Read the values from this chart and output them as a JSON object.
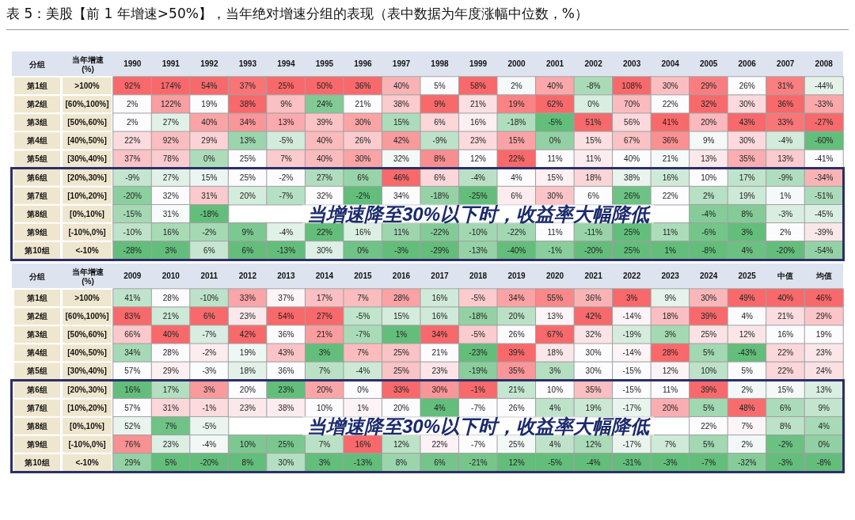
{
  "chart_data": [
    {
      "type": "heatmap",
      "title": "表 5：美股【前 1 年增速>50%】，当年绝对增速分组的表现（表中数据为年度涨幅中位数，%）",
      "ylabel": "当年增速(%)",
      "y2label": "分组",
      "annotations": [
        "当增速降至30%以下时，收益率大幅降低"
      ],
      "categories": [
        "1990",
        "1991",
        "1992",
        "1993",
        "1994",
        "1995",
        "1996",
        "1997",
        "1998",
        "1999",
        "2000",
        "2001",
        "2002",
        "2003",
        "2004",
        "2005",
        "2006",
        "2007",
        "2008"
      ],
      "y_categories": [
        ">100%",
        "[60%,100%]",
        "[50%,60%]",
        "[40%,50%]",
        "[30%,40%]",
        "[20%,30%]",
        "[10%,20%]",
        "[0%,10%]",
        "[-10%,0%]",
        "<-10%"
      ],
      "y2_categories": [
        "第1组",
        "第2组",
        "第3组",
        "第4组",
        "第5组",
        "第6组",
        "第7组",
        "第8组",
        "第9组",
        "第10组"
      ],
      "cells": [
        [
          92,
          174,
          54,
          37,
          25,
          50,
          36,
          40,
          5,
          58,
          2,
          40,
          -8,
          108,
          30,
          29,
          26,
          31,
          -44
        ],
        [
          2,
          122,
          19,
          38,
          9,
          24,
          21,
          38,
          9,
          21,
          19,
          62,
          0,
          70,
          22,
          32,
          30,
          36,
          -33
        ],
        [
          2,
          27,
          40,
          34,
          13,
          39,
          30,
          15,
          6,
          16,
          -18,
          -5,
          51,
          56,
          41,
          20,
          43,
          33,
          -27
        ],
        [
          22,
          92,
          29,
          13,
          -5,
          40,
          26,
          42,
          -9,
          23,
          15,
          0,
          15,
          67,
          36,
          9,
          30,
          -4,
          -60
        ],
        [
          37,
          78,
          0,
          25,
          7,
          40,
          30,
          32,
          8,
          12,
          22,
          11,
          11,
          40,
          21,
          13,
          35,
          13,
          -41
        ],
        [
          -9,
          27,
          15,
          25,
          -2,
          27,
          6,
          46,
          6,
          -4,
          4,
          15,
          18,
          38,
          16,
          10,
          17,
          -9,
          -34
        ],
        [
          -20,
          32,
          31,
          20,
          -7,
          32,
          -2,
          34,
          -18,
          -25,
          6,
          30,
          6,
          26,
          22,
          2,
          19,
          1,
          -51
        ],
        [
          -15,
          31,
          -18,
          null,
          null,
          null,
          null,
          null,
          null,
          null,
          null,
          null,
          null,
          null,
          null,
          -4,
          8,
          -3,
          -45
        ],
        [
          -10,
          16,
          -2,
          9,
          -4,
          22,
          16,
          11,
          -22,
          -10,
          -22,
          11,
          -11,
          25,
          11,
          -6,
          3,
          2,
          -39
        ],
        [
          -28,
          3,
          6,
          6,
          -13,
          30,
          0,
          -3,
          -29,
          -13,
          -40,
          -1,
          -20,
          25,
          1,
          -8,
          4,
          -20,
          -54
        ]
      ],
      "cell_labels": [
        [
          "92%",
          "174%",
          "54%",
          "37%",
          "25%",
          "50%",
          "36%",
          "40%",
          "5%",
          "58%",
          "2%",
          "40%",
          "-8%",
          "108%",
          "30%",
          "29%",
          "26%",
          "31%",
          "-44%"
        ],
        [
          "2%",
          "122%",
          "19%",
          "38%",
          "9%",
          "24%",
          "21%",
          "38%",
          "9%",
          "21%",
          "19%",
          "62%",
          "0%",
          "70%",
          "22%",
          "32%",
          "30%",
          "36%",
          "-33%"
        ],
        [
          "2%",
          "27%",
          "40%",
          "34%",
          "13%",
          "39%",
          "30%",
          "15%",
          "6%",
          "16%",
          "-18%",
          "-5%",
          "51%",
          "56%",
          "41%",
          "20%",
          "43%",
          "33%",
          "-27%"
        ],
        [
          "22%",
          "92%",
          "29%",
          "13%",
          "-5%",
          "40%",
          "26%",
          "42%",
          "-9%",
          "23%",
          "15%",
          "0%",
          "15%",
          "67%",
          "36%",
          "9%",
          "30%",
          "-4%",
          "-60%"
        ],
        [
          "37%",
          "78%",
          "0%",
          "25%",
          "7%",
          "40%",
          "30%",
          "32%",
          "8%",
          "12%",
          "22%",
          "11%",
          "11%",
          "40%",
          "21%",
          "13%",
          "35%",
          "13%",
          "-41%"
        ],
        [
          "-9%",
          "27%",
          "15%",
          "25%",
          "-2%",
          "27%",
          "6%",
          "46%",
          "6%",
          "-4%",
          "4%",
          "15%",
          "18%",
          "38%",
          "16%",
          "10%",
          "17%",
          "-9%",
          "-34%"
        ],
        [
          "-20%",
          "32%",
          "31%",
          "20%",
          "-7%",
          "32%",
          "-2%",
          "34%",
          "-18%",
          "-25%",
          "6%",
          "30%",
          "6%",
          "26%",
          "22%",
          "2%",
          "19%",
          "1%",
          "-51%"
        ],
        [
          "-15%",
          "31%",
          "-18%",
          null,
          null,
          null,
          null,
          null,
          null,
          null,
          null,
          null,
          null,
          null,
          null,
          "-4%",
          "8%",
          "-3%",
          "-45%"
        ],
        [
          "-10%",
          "16%",
          "-2%",
          "9%",
          "-4%",
          "22%",
          "16%",
          "11%",
          "-22%",
          "-10%",
          "-22%",
          "11%",
          "-11%",
          "25%",
          "11%",
          "-6%",
          "3%",
          "2%",
          "-39%"
        ],
        [
          "-28%",
          "3%",
          "6%",
          "6%",
          "-13%",
          "30%",
          "0%",
          "-3%",
          "-29%",
          "-13%",
          "-40%",
          "-1%",
          "-20%",
          "25%",
          "1%",
          "-8%",
          "4%",
          "-20%",
          "-54%"
        ]
      ]
    },
    {
      "type": "heatmap",
      "ylabel": "当年增速(%)",
      "y2label": "分组",
      "annotations": [
        "当增速降至30%以下时，收益率大幅降低"
      ],
      "categories": [
        "2009",
        "2010",
        "2011",
        "2012",
        "2013",
        "2014",
        "2015",
        "2016",
        "2017",
        "2018",
        "2019",
        "2020",
        "2021",
        "2022",
        "2023",
        "2024",
        "2025",
        "中值",
        "均值"
      ],
      "y_categories": [
        ">100%",
        "[60%,100%]",
        "[50%,60%]",
        "[40%,50%]",
        "[30%,40%]",
        "[20%,30%]",
        "[10%,20%]",
        "[0%,10%]",
        "[-10%,0%]",
        "<-10%"
      ],
      "y2_categories": [
        "第1组",
        "第2组",
        "第3组",
        "第4组",
        "第5组",
        "第6组",
        "第7组",
        "第8组",
        "第9组",
        "第10组"
      ],
      "cells": [
        [
          41,
          28,
          -10,
          33,
          37,
          17,
          7,
          28,
          16,
          -5,
          34,
          55,
          36,
          3,
          9,
          30,
          49,
          40,
          46
        ],
        [
          83,
          21,
          6,
          23,
          54,
          27,
          -5,
          15,
          16,
          -18,
          20,
          13,
          42,
          -14,
          18,
          39,
          4,
          21,
          29
        ],
        [
          66,
          40,
          -7,
          42,
          36,
          21,
          -7,
          1,
          34,
          -5,
          26,
          67,
          32,
          -19,
          3,
          25,
          12,
          16,
          19
        ],
        [
          34,
          28,
          -2,
          19,
          43,
          3,
          7,
          25,
          21,
          -23,
          39,
          18,
          30,
          -14,
          28,
          5,
          -43,
          22,
          23
        ],
        [
          57,
          29,
          -3,
          18,
          36,
          7,
          -4,
          25,
          23,
          -19,
          35,
          3,
          30,
          -15,
          12,
          10,
          5,
          22,
          24
        ],
        [
          16,
          17,
          3,
          20,
          23,
          20,
          0,
          33,
          30,
          -1,
          21,
          10,
          35,
          -15,
          11,
          39,
          2,
          15,
          13
        ],
        [
          57,
          31,
          -1,
          23,
          38,
          10,
          1,
          20,
          4,
          -7,
          26,
          4,
          19,
          -17,
          20,
          5,
          48,
          6,
          9
        ],
        [
          52,
          7,
          -5,
          null,
          null,
          null,
          null,
          null,
          null,
          null,
          null,
          null,
          null,
          null,
          null,
          22,
          7,
          8,
          4
        ],
        [
          76,
          23,
          -4,
          10,
          25,
          7,
          16,
          12,
          22,
          -7,
          25,
          4,
          12,
          -17,
          7,
          5,
          2,
          -2,
          0
        ],
        [
          29,
          5,
          -20,
          8,
          30,
          3,
          -13,
          8,
          6,
          -21,
          12,
          -5,
          -4,
          -31,
          -3,
          -7,
          -32,
          -3,
          -8
        ]
      ],
      "cell_labels": [
        [
          "41%",
          "28%",
          "-10%",
          "33%",
          "37%",
          "17%",
          "7%",
          "28%",
          "16%",
          "-5%",
          "34%",
          "55%",
          "36%",
          "3%",
          "9%",
          "30%",
          "49%",
          "40%",
          "46%"
        ],
        [
          "83%",
          "21%",
          "6%",
          "23%",
          "54%",
          "27%",
          "-5%",
          "15%",
          "16%",
          "-18%",
          "20%",
          "13%",
          "42%",
          "-14%",
          "18%",
          "39%",
          "4%",
          "21%",
          "29%"
        ],
        [
          "66%",
          "40%",
          "-7%",
          "42%",
          "36%",
          "21%",
          "-7%",
          "1%",
          "34%",
          "-5%",
          "26%",
          "67%",
          "32%",
          "-19%",
          "3%",
          "25%",
          "12%",
          "16%",
          "19%"
        ],
        [
          "34%",
          "28%",
          "-2%",
          "19%",
          "43%",
          "3%",
          "7%",
          "25%",
          "21%",
          "-23%",
          "39%",
          "18%",
          "30%",
          "-14%",
          "28%",
          "5%",
          "-43%",
          "22%",
          "23%"
        ],
        [
          "57%",
          "29%",
          "-3%",
          "18%",
          "36%",
          "7%",
          "-4%",
          "25%",
          "23%",
          "-19%",
          "35%",
          "3%",
          "30%",
          "-15%",
          "12%",
          "10%",
          "5%",
          "22%",
          "24%"
        ],
        [
          "16%",
          "17%",
          "3%",
          "20%",
          "23%",
          "20%",
          "0%",
          "33%",
          "30%",
          "-1%",
          "21%",
          "10%",
          "35%",
          "-15%",
          "11%",
          "39%",
          "2%",
          "15%",
          "13%"
        ],
        [
          "57%",
          "31%",
          "-1%",
          "23%",
          "38%",
          "10%",
          "1%",
          "20%",
          "4%",
          "-7%",
          "26%",
          "4%",
          "19%",
          "-17%",
          "20%",
          "5%",
          "48%",
          "6%",
          "9%"
        ],
        [
          "52%",
          "7%",
          "-5%",
          null,
          null,
          null,
          null,
          null,
          null,
          null,
          null,
          null,
          null,
          null,
          null,
          "22%",
          "7%",
          "8%",
          "4%"
        ],
        [
          "76%",
          "23%",
          "-4%",
          "10%",
          "25%",
          "7%",
          "16%",
          "12%",
          "22%",
          "-7%",
          "25%",
          "4%",
          "12%",
          "-17%",
          "7%",
          "5%",
          "2%",
          "-2%",
          "0%"
        ],
        [
          "29%",
          "5%",
          "-20%",
          "8%",
          "30%",
          "3%",
          "-13%",
          "8%",
          "6%",
          "-21%",
          "12%",
          "-5%",
          "-4%",
          "-31%",
          "-3%",
          "-7%",
          "-32%",
          "-3%",
          "-8%"
        ]
      ]
    }
  ]
}
